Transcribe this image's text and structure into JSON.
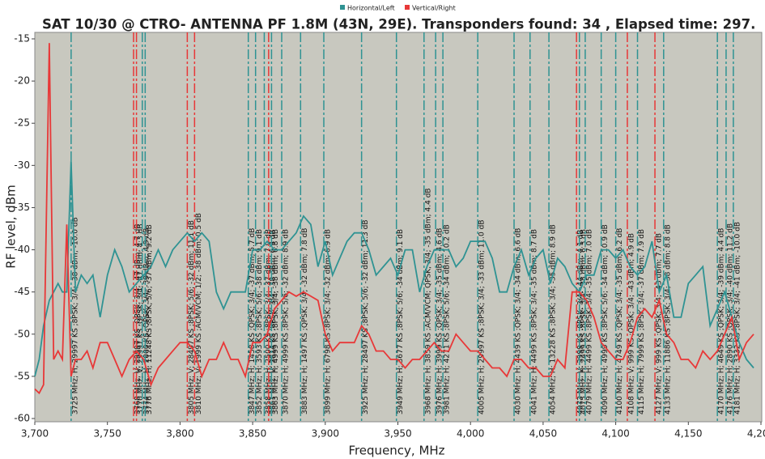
{
  "chart_data": {
    "type": "line",
    "title": "SAT 10/30 @ CTRO- ANTENNA PF 1.8M (43N, 29E). Transponders found: 34 , Elapsed time: 297.",
    "x_label": "Frequency, MHz",
    "y_label": "RF level, dBm",
    "xlim": [
      3700,
      4200
    ],
    "ylim": [
      -60,
      -15
    ],
    "xticks": [
      {
        "value": 3700,
        "label": "3,700"
      },
      {
        "value": 3750,
        "label": "3,750"
      },
      {
        "value": 3800,
        "label": "3,800"
      },
      {
        "value": 3850,
        "label": "3,850"
      },
      {
        "value": 3900,
        "label": "3,900"
      },
      {
        "value": 3950,
        "label": "3,950"
      },
      {
        "value": 4000,
        "label": "4,000"
      },
      {
        "value": 4050,
        "label": "4,050"
      },
      {
        "value": 4100,
        "label": "4,100"
      },
      {
        "value": 4150,
        "label": "4,150"
      },
      {
        "value": 4200,
        "label": "4,200"
      }
    ],
    "yticks": [
      -15,
      -20,
      -25,
      -30,
      -35,
      -40,
      -45,
      -50,
      -55,
      -60
    ],
    "grid": true,
    "x": [
      3700,
      3703,
      3706,
      3710,
      3713,
      3716,
      3719,
      3722,
      3725,
      3728,
      3732,
      3736,
      3740,
      3745,
      3750,
      3755,
      3760,
      3765,
      3770,
      3775,
      3780,
      3785,
      3790,
      3795,
      3800,
      3805,
      3810,
      3815,
      3820,
      3825,
      3830,
      3835,
      3840,
      3845,
      3850,
      3855,
      3860,
      3865,
      3870,
      3875,
      3880,
      3885,
      3890,
      3895,
      3900,
      3905,
      3910,
      3915,
      3920,
      3925,
      3930,
      3935,
      3940,
      3945,
      3950,
      3955,
      3960,
      3965,
      3970,
      3975,
      3980,
      3985,
      3990,
      3995,
      4000,
      4005,
      4010,
      4015,
      4020,
      4025,
      4030,
      4035,
      4040,
      4045,
      4050,
      4055,
      4060,
      4065,
      4070,
      4075,
      4080,
      4085,
      4090,
      4095,
      4100,
      4105,
      4110,
      4115,
      4120,
      4125,
      4130,
      4135,
      4140,
      4145,
      4150,
      4155,
      4160,
      4165,
      4170,
      4175,
      4180,
      4185,
      4190,
      4195
    ],
    "series": [
      {
        "name": "Horizontal/Left",
        "color": "#2f9393",
        "values": [
          -55,
          -53,
          -49,
          -46,
          -45,
          -44,
          -45,
          -45,
          -29.5,
          -45,
          -43,
          -44,
          -43,
          -48,
          -43,
          -40,
          -42,
          -45,
          -44,
          -43,
          -42,
          -40,
          -42,
          -40,
          -39,
          -38,
          -39,
          -38,
          -39,
          -45,
          -47,
          -45,
          -45,
          -45,
          -40,
          -40,
          -39,
          -40,
          -40,
          -39,
          -38,
          -36,
          -37,
          -42,
          -39,
          -43,
          -41,
          -39,
          -38,
          -38,
          -40,
          -43,
          -42,
          -41,
          -43,
          -40,
          -40,
          -45,
          -42,
          -40,
          -40,
          -40,
          -42,
          -41,
          -39,
          -39,
          -39,
          -41,
          -45,
          -45,
          -42,
          -40,
          -43,
          -41,
          -40,
          -44,
          -41,
          -42,
          -44,
          -45,
          -43,
          -43,
          -40,
          -40,
          -41,
          -40,
          -42,
          -43,
          -42,
          -39,
          -45,
          -43,
          -48,
          -48,
          -44,
          -43,
          -42,
          -49,
          -47,
          -45,
          -48,
          -51,
          -53,
          -54
        ]
      },
      {
        "name": "Vertical/Right",
        "color": "#e83838",
        "values": [
          -56.5,
          -57,
          -56,
          -15.5,
          -53,
          -52,
          -53,
          -37,
          -55,
          -53,
          -53,
          -52,
          -54,
          -51,
          -51,
          -53,
          -55,
          -53,
          -52,
          -53,
          -56,
          -54,
          -53,
          -52,
          -51,
          -51,
          -52,
          -55,
          -53,
          -53,
          -51,
          -53,
          -53,
          -55,
          -51,
          -51,
          -50,
          -47,
          -46,
          -45,
          -45.5,
          -45,
          -45.5,
          -46,
          -50,
          -52,
          -51,
          -51,
          -51,
          -49,
          -50,
          -52,
          -52,
          -53,
          -53,
          -54,
          -53,
          -53,
          -52,
          -51,
          -52,
          -52,
          -50,
          -51,
          -52,
          -52,
          -53,
          -54,
          -54,
          -55,
          -53,
          -53,
          -54,
          -54,
          -55,
          -55,
          -53,
          -54,
          -45,
          -45,
          -46,
          -48,
          -51,
          -52,
          -53,
          -53,
          -51,
          -48,
          -47,
          -48,
          -46,
          -50,
          -51,
          -53,
          -53,
          -54,
          -52,
          -53,
          -52,
          -50,
          -48,
          -53,
          -51,
          -50
        ]
      }
    ],
    "markers": [
      {
        "x": 3725,
        "color": "#2f9393",
        "label": "3725 MHz; H; 29997 KS ;8PSK; 3/4; -38 dBm; -10.0 dB"
      },
      {
        "x": 3768,
        "color": "#e83838",
        "label": "3768 MHz; V; 29997 KS ;QPSK; 3/4; -47 dBm; 4.7 dB"
      },
      {
        "x": 3770,
        "color": "#e83838",
        "label": "3770 MHz; V; 29997 KS ;QPSK; 3/4; -47 dBm; 4.3 dB"
      },
      {
        "x": 3774,
        "color": "#2f9393",
        "label": "3774 MHz; H; 2000 KS ;QPSK; 3/4; -39 dBm; 4.9 dB"
      },
      {
        "x": 3776,
        "color": "#2f9393",
        "label": "3776 MHz; H; 11248 KS ;8PSK; 5/6; -37 dBm; 9.2 dB"
      },
      {
        "x": 3805,
        "color": "#e83838",
        "label": "3805 MHz; V; 28497 KS ;8PSK; 5/6; -32 dBm; 11.1 dB"
      },
      {
        "x": 3810,
        "color": "#e83838",
        "label": "3810 MHz; V; 1999 KS ;ACM/VCM; 1/2; -38 dBm; 0.5 dB"
      },
      {
        "x": 3847,
        "color": "#2f9393",
        "label": "3847 MHz; H; 1458 KS ;QPSK; 3/4; -37 dBm; 5.7 dB"
      },
      {
        "x": 3852,
        "color": "#2f9393",
        "label": "3852 MHz; H; 3593 KS ;8PSK; 5/6; -38 dBm; 9.1 dB"
      },
      {
        "x": 3858,
        "color": "#2f9393",
        "label": "3858 MHz; H; 2500 KS ;8PSK; 3/4; -37 dBm; 7.9 dB"
      },
      {
        "x": 3861,
        "color": "#e83838",
        "label": "3861 MHz; V; 2814 KS ;8PSK; 3/4; -38 dBm; 6.9 dB"
      },
      {
        "x": 3863,
        "color": "#2f9393",
        "label": "3863 MHz; H; 4999 KS ;8PSK; 3/4; -38 dBm; 6.8 dB"
      },
      {
        "x": 3870,
        "color": "#2f9393",
        "label": "3870 MHz; H; 4999 KS ;8PSK; 5/6; -32 dBm; 8.9 dB"
      },
      {
        "x": 3883,
        "color": "#2f9393",
        "label": "3883 MHz; H; 1497 KS ;QPSK; 3/4; -32 dBm; 7.8 dB"
      },
      {
        "x": 3899,
        "color": "#2f9393",
        "label": "3899 MHz; H; 6798 KS ;8PSK; 3/4; -32 dBm; 6.9 dB"
      },
      {
        "x": 3925,
        "color": "#2f9393",
        "label": "3925 MHz; H; 28497 KS ;8PSK; 5/6; -32 dBm; 11.3 dB"
      },
      {
        "x": 3949,
        "color": "#2f9393",
        "label": "3949 MHz; H; 3677 KS ;8PSK; 5/6; -34 dBm; 9.1 dB"
      },
      {
        "x": 3968,
        "color": "#2f9393",
        "label": "3968 MHz; H; 3859 KS ;ACM/VCM; QPSK; 3/4; -35 dBm; 4.4 dB"
      },
      {
        "x": 3976,
        "color": "#2f9393",
        "label": "3976 MHz; H; 3999 KS ;QPSK; 3/4; -35 dBm; 4.6 dB"
      },
      {
        "x": 3981,
        "color": "#2f9393",
        "label": "3981 MHz; H; 4271 KS ;8PSK; 5/6; -34 dBm; 10.2 dB"
      },
      {
        "x": 4005,
        "color": "#2f9393",
        "label": "4005 MHz; H; 29997 KS ;8PSK; 3/4; -33 dBm; 11.0 dB"
      },
      {
        "x": 4030,
        "color": "#2f9393",
        "label": "4030 MHz; H; 4439 KS ;QPSK; 3/4; -34 dBm; 6.6 dB"
      },
      {
        "x": 4041,
        "color": "#2f9393",
        "label": "4041 MHz; H; 4499 KS ;8PSK; 3/4; -35 dBm; 8.7 dB"
      },
      {
        "x": 4054,
        "color": "#2f9393",
        "label": "4054 MHz; H; 13228 KS ;8PSK; 3/4; -35 dBm; 8.9 dB"
      },
      {
        "x": 4073,
        "color": "#e83838",
        "label": "4073 MHz; V; 3999 KS ;8PSK; 3/4; -44 dBm; 4.1 dB"
      },
      {
        "x": 4075,
        "color": "#2f9393",
        "label": "4075 MHz; H; 2499 KS ;8PSK; 3/4; -38 dBm; 6.3 dB"
      },
      {
        "x": 4079,
        "color": "#2f9393",
        "label": "4079 MHz; H; 4499 KS ;8PSK; 3/4; -35 dBm; 7.0 dB"
      },
      {
        "x": 4090,
        "color": "#2f9393",
        "label": "4090 MHz; H; 4999 KS ;8PSK; 5/6; -34 dBm; 10.9 dB"
      },
      {
        "x": 4100,
        "color": "#2f9393",
        "label": "4100 MHz; H; 4749 KS ;QPSK; 3/4; -35 dBm; 6.2 dB"
      },
      {
        "x": 4108,
        "color": "#e83838",
        "label": "4108 MHz; V; 999 KS ;QPSK; 3/4; -43 dBm; 4.9 dB"
      },
      {
        "x": 4115,
        "color": "#2f9393",
        "label": "4115 MHz; H; 7999 KS ;8PSK; 3/4; -37 dBm; 7.9 dB"
      },
      {
        "x": 4127,
        "color": "#e83838",
        "label": "4127 MHz; V; 999 KS ;QPSK; 3/4; -43 dBm; 7.7 dB"
      },
      {
        "x": 4133,
        "color": "#2f9393",
        "label": "4133 MHz; H; 11886 KS ;8PSK; 3/4; -38 dBm; 8.8 dB"
      },
      {
        "x": 4170,
        "color": "#2f9393",
        "label": "4170 MHz; H; 4649 KS ;QPSK; 3/4; -39 dBm; 4.4 dB"
      },
      {
        "x": 4176,
        "color": "#2f9393",
        "label": "4176 MHz; H; 2890 KS ;QPSK; 3/4; -40 dBm; 11.2 dB"
      },
      {
        "x": 4181,
        "color": "#2f9393",
        "label": "4181 MHz; H; 3332 KS ;8PSK; 3/4; -41 dBm; -10.0 dB"
      }
    ]
  }
}
